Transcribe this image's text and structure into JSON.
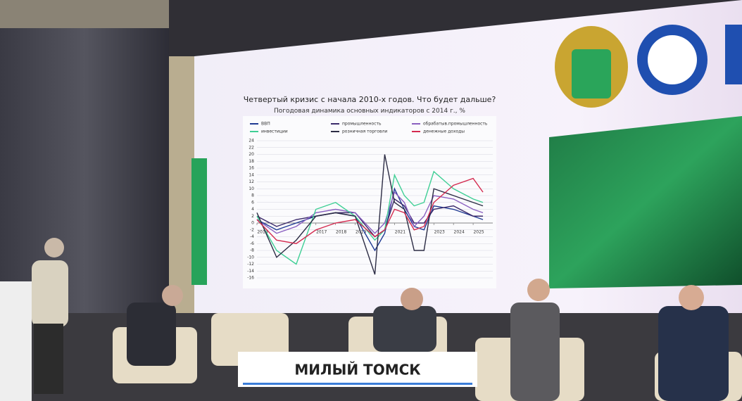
{
  "chart_data": {
    "type": "line",
    "title": "Четвертый кризис с начала 2010-х годов. Что будет дальше?",
    "subtitle": "Погодовая динамика основных индикаторов с 2014 г., %",
    "x": [
      2014,
      2015,
      2016,
      2017,
      2018,
      2019,
      2020,
      2020.5,
      2021,
      2021.5,
      2022,
      2022.5,
      2023,
      2024,
      2025,
      2025.5
    ],
    "xlim": [
      2014,
      2026
    ],
    "xticks": [
      2014,
      2017,
      2018,
      2019,
      2021,
      2023,
      2024,
      2025
    ],
    "ylim": [
      -16,
      24
    ],
    "yticks": [
      24,
      22,
      20,
      18,
      16,
      14,
      12,
      10,
      8,
      6,
      4,
      2,
      0,
      -2,
      -4,
      -6,
      -8,
      -10,
      -12,
      -14,
      -16
    ],
    "grid": true,
    "series": [
      {
        "name": "ВВП",
        "color": "#1f3a93",
        "values": [
          1,
          -2,
          0,
          2,
          3,
          2,
          -8,
          -3,
          10,
          4,
          -1,
          -2,
          5,
          4,
          2,
          1
        ]
      },
      {
        "name": "промышленность",
        "color": "#3b2a6b",
        "values": [
          2,
          -1,
          1,
          2,
          3,
          3,
          -4,
          -2,
          7,
          5,
          0,
          0,
          4,
          5,
          2,
          2
        ]
      },
      {
        "name": "обрабатыв.промышленность",
        "color": "#8a60c0",
        "values": [
          1,
          -3,
          -1,
          3,
          4,
          3,
          -3,
          0,
          9,
          6,
          -1,
          2,
          8,
          7,
          4,
          3
        ]
      },
      {
        "name": "инвестиции",
        "color": "#3fcf95",
        "values": [
          2,
          -8,
          -12,
          4,
          6,
          2,
          -5,
          -2,
          14,
          8,
          5,
          6,
          15,
          10,
          7,
          6
        ]
      },
      {
        "name": "розничная торговли",
        "color": "#2c2c44",
        "values": [
          3,
          -10,
          -5,
          2,
          3,
          2,
          -15,
          20,
          6,
          4,
          -8,
          -8,
          10,
          8,
          6,
          5
        ]
      },
      {
        "name": "денежные доходы",
        "color": "#d42a4f",
        "values": [
          1,
          -5,
          -6,
          -2,
          0,
          1,
          -4,
          -2,
          4,
          3,
          -2,
          -1,
          6,
          11,
          13,
          9
        ]
      }
    ]
  },
  "watermark": "МИЛЫЙ ТОМСК"
}
